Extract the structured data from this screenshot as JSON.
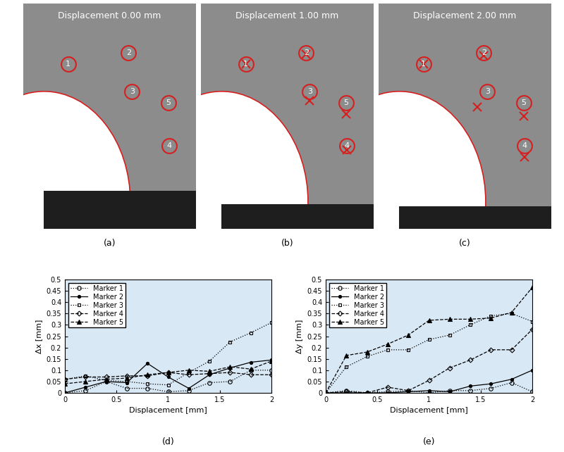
{
  "panels": [
    {
      "title": "Displacement 0.00 mm",
      "label": "(a)",
      "markers": [
        "1",
        "2",
        "3",
        "4",
        "5"
      ]
    },
    {
      "title": "Displacement 1.00 mm",
      "label": "(b)",
      "markers": [
        "1",
        "2",
        "3",
        "4",
        "5"
      ]
    },
    {
      "title": "Displacement 2.00 mm",
      "label": "(c)",
      "markers": [
        "1",
        "2",
        "3",
        "4",
        "5"
      ]
    }
  ],
  "chart_data": [
    {
      "type": "line",
      "annotations": [
        "(d)"
      ],
      "x_label": "Displacement [mm]",
      "y_label": "Δx [mm]",
      "x": [
        0,
        0.2,
        0.4,
        0.6,
        0.8,
        1.0,
        1.2,
        1.4,
        1.6,
        1.8,
        2.0
      ],
      "xlim": [
        0,
        2
      ],
      "ylim": [
        0,
        0.5
      ],
      "xticks": [
        0,
        0.5,
        1,
        1.5,
        2
      ],
      "yticks": [
        0,
        0.05,
        0.1,
        0.15,
        0.2,
        0.25,
        0.3,
        0.35,
        0.4,
        0.45,
        0.5
      ],
      "legend": "upper left",
      "series": [
        {
          "name": "Marker 1",
          "color": "#000000",
          "marker": "open_circle",
          "line_style": "dotted",
          "values": [
            0,
            0.01,
            0.05,
            0.02,
            0.02,
            0.005,
            0.01,
            0.045,
            0.05,
            0.1,
            0.1
          ]
        },
        {
          "name": "Marker 2",
          "color": "#000000",
          "marker": "dot",
          "line_style": "solid",
          "values": [
            0,
            0.025,
            0.05,
            0.045,
            0.13,
            0.07,
            0.02,
            0.08,
            0.11,
            0.135,
            0.145
          ]
        },
        {
          "name": "Marker 3",
          "color": "#000000",
          "marker": "open_square",
          "line_style": "dotted",
          "values": [
            0.06,
            0.075,
            0.055,
            0.05,
            0.04,
            0.035,
            0.09,
            0.14,
            0.225,
            0.265,
            0.31
          ]
        },
        {
          "name": "Marker 4",
          "color": "#000000",
          "marker": "open_diamond",
          "line_style": "dashed",
          "values": [
            0.06,
            0.07,
            0.07,
            0.075,
            0.075,
            0.09,
            0.08,
            0.085,
            0.09,
            0.08,
            0.08
          ]
        },
        {
          "name": "Marker 5",
          "color": "#000000",
          "marker": "triangle",
          "line_style": "dashed",
          "values": [
            0.04,
            0.05,
            0.06,
            0.065,
            0.08,
            0.09,
            0.1,
            0.095,
            0.115,
            0.105,
            0.14
          ]
        }
      ]
    },
    {
      "type": "line",
      "annotations": [
        "(e)"
      ],
      "x_label": "Displacement [mm]",
      "y_label": "Δy [mm]",
      "x": [
        0,
        0.2,
        0.4,
        0.6,
        0.8,
        1.0,
        1.2,
        1.4,
        1.6,
        1.8,
        2.0
      ],
      "xlim": [
        0,
        2
      ],
      "ylim": [
        0,
        0.5
      ],
      "xticks": [
        0,
        0.5,
        1,
        1.5,
        2
      ],
      "yticks": [
        0,
        0.05,
        0.1,
        0.15,
        0.2,
        0.25,
        0.3,
        0.35,
        0.4,
        0.45,
        0.5
      ],
      "legend": "upper left",
      "series": [
        {
          "name": "Marker 1",
          "color": "#000000",
          "marker": "open_circle",
          "line_style": "dotted",
          "values": [
            0,
            0.01,
            0,
            0.005,
            0.01,
            0,
            0.01,
            0.01,
            0.02,
            0.045,
            0.005
          ]
        },
        {
          "name": "Marker 2",
          "color": "#000000",
          "marker": "dot",
          "line_style": "solid",
          "values": [
            0,
            0,
            0,
            0,
            0.005,
            0.01,
            0.005,
            0.03,
            0.04,
            0.06,
            0.1
          ]
        },
        {
          "name": "Marker 3",
          "color": "#000000",
          "marker": "open_square",
          "line_style": "dotted",
          "values": [
            0,
            0.115,
            0.16,
            0.19,
            0.19,
            0.235,
            0.255,
            0.3,
            0.34,
            0.35,
            0.315
          ]
        },
        {
          "name": "Marker 4",
          "color": "#000000",
          "marker": "open_diamond",
          "line_style": "dashed",
          "values": [
            0,
            0.005,
            0,
            0.025,
            0.01,
            0.055,
            0.11,
            0.145,
            0.19,
            0.19,
            0.28
          ]
        },
        {
          "name": "Marker 5",
          "color": "#000000",
          "marker": "triangle",
          "line_style": "dashed",
          "values": [
            0,
            0.165,
            0.18,
            0.215,
            0.255,
            0.32,
            0.325,
            0.325,
            0.33,
            0.355,
            0.465
          ]
        }
      ]
    }
  ]
}
